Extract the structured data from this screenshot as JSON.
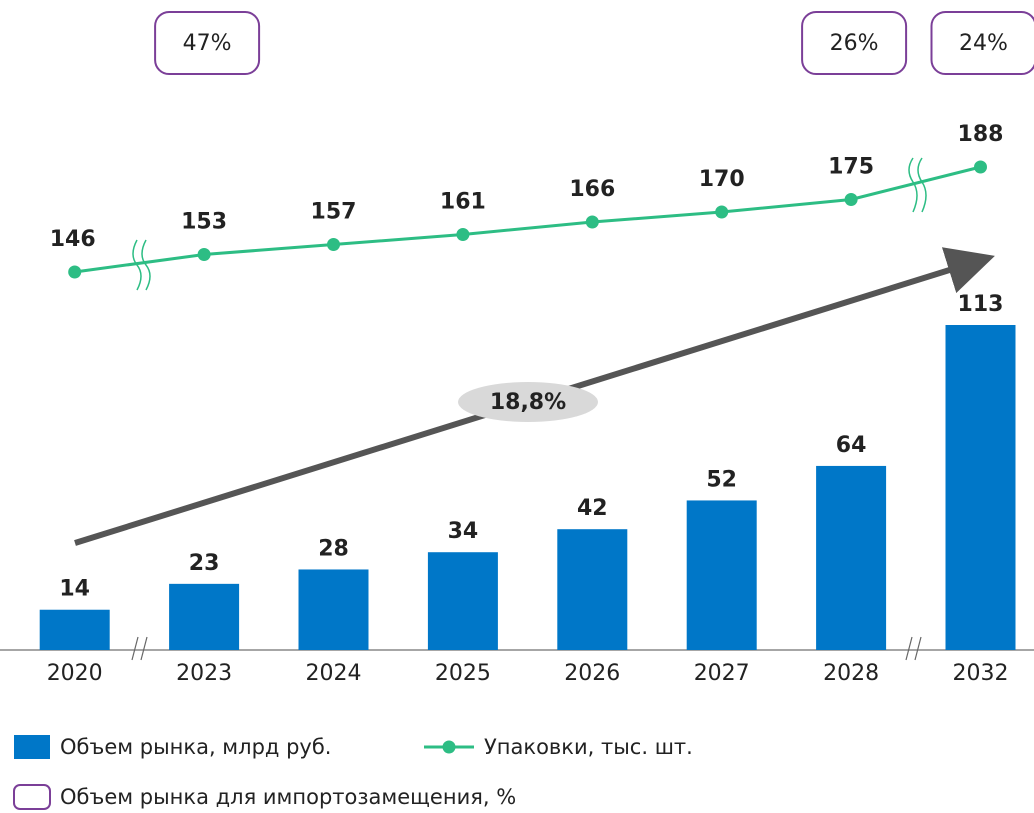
{
  "chart_data": {
    "type": "bar",
    "categories": [
      "2020",
      "2023",
      "2024",
      "2025",
      "2026",
      "2027",
      "2028",
      "2032"
    ],
    "series": [
      {
        "name": "Объем рынка, млрд руб.",
        "color": "#0077c8",
        "values": [
          14,
          23,
          28,
          34,
          42,
          52,
          64,
          113
        ]
      },
      {
        "name": "Упаковки, тыс. шт.",
        "type": "line",
        "axis": "y2",
        "color": "#2dbd84",
        "values": [
          146,
          153,
          157,
          161,
          166,
          170,
          175,
          188
        ]
      }
    ],
    "ylim": [
      0,
      226
    ],
    "y2lim": [
      120,
      220
    ],
    "annotations": [
      {
        "category": "2023",
        "value": 47,
        "label": "47%"
      },
      {
        "category": "2028",
        "value": 26,
        "label": "26%"
      },
      {
        "category": "2032",
        "value": 24,
        "label": "24%"
      }
    ],
    "annotation_legend": "Объем рынка для импортозамещения, %",
    "cagr": {
      "value": 18.8,
      "label": "18,8%"
    }
  }
}
